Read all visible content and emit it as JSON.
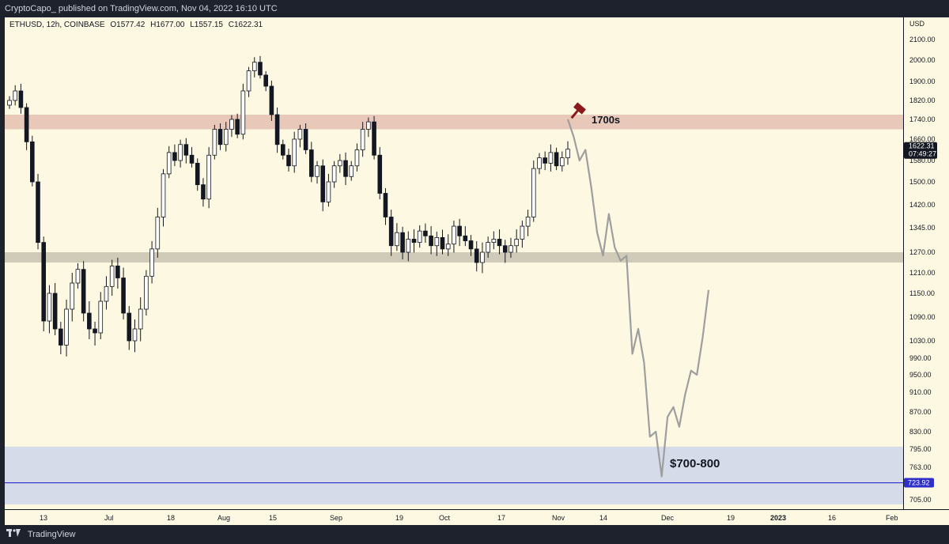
{
  "header": {
    "publish_text": "CryptoCapo_ published on TradingView.com, Nov 04, 2022 16:10 UTC"
  },
  "footer": {
    "brand": "TradingView"
  },
  "chart_data": {
    "type": "candlestick",
    "symbol_info": "ETHUSD, 12h, COINBASE",
    "ohlc": {
      "open": "O1577.42",
      "high": "H1677.00",
      "low": "L1557.15",
      "close": "C1622.31"
    },
    "currency": "USD",
    "y_ticks": [
      2100,
      2000,
      1900,
      1820,
      1740,
      1660,
      1580,
      1500,
      1420,
      1345,
      1270,
      1210,
      1150,
      1090,
      1030,
      990,
      950,
      910,
      870,
      830,
      795,
      763,
      723,
      705
    ],
    "y_tick_labels": [
      "2100.00",
      "2000.00",
      "1900.00",
      "1820.00",
      "1740.00",
      "1660.00",
      "1580.00",
      "1500.00",
      "1420.00",
      "1345.00",
      "1270.00",
      "1210.00",
      "1150.00",
      "1090.00",
      "1030.00",
      "990.00",
      "950.00",
      "910.00",
      "870.00",
      "830.00",
      "795.00",
      "763.00",
      "723.00",
      "705.00"
    ],
    "x_labels": [
      "13",
      "Jul",
      "18",
      "Aug",
      "15",
      "Sep",
      "19",
      "Oct",
      "17",
      "Nov",
      "14",
      "Dec",
      "19",
      "2023",
      "16",
      "Feb"
    ],
    "last_price": {
      "value": "1622.31",
      "countdown": "07:49:27"
    },
    "support_line": {
      "value": "723.92"
    },
    "zones": [
      {
        "name": "resistance",
        "from": 1700,
        "to": 1760,
        "color": "#e8c8b8"
      },
      {
        "name": "support",
        "from": 1240,
        "to": 1270,
        "color": "#d0cbb8"
      },
      {
        "name": "target",
        "from": 700,
        "to": 800,
        "color": "#d5dbe8"
      }
    ],
    "annotations": {
      "top_label": "1700s",
      "target_label": "$700-800"
    },
    "colors": {
      "up": "#ffffff",
      "down": "#131722",
      "projection": "#9e9e9e",
      "support_line": "#2f2fcc",
      "hammer": "#8b1a1a"
    },
    "projection": [
      1740,
      1670,
      1580,
      1620,
      1480,
      1330,
      1260,
      1390,
      1285,
      1245,
      1260,
      1000,
      1060,
      980,
      820,
      830,
      740,
      860,
      880,
      840,
      905,
      960,
      950,
      1040,
      1160
    ],
    "candles_close": [
      1820,
      1860,
      1790,
      1650,
      1500,
      1300,
      1080,
      1150,
      1060,
      1020,
      1110,
      1180,
      1220,
      1100,
      1060,
      1050,
      1130,
      1170,
      1230,
      1195,
      1100,
      1030,
      1060,
      1110,
      1200,
      1280,
      1380,
      1530,
      1610,
      1580,
      1640,
      1600,
      1570,
      1490,
      1440,
      1600,
      1700,
      1640,
      1700,
      1740,
      1680,
      1860,
      1950,
      1990,
      1930,
      1880,
      1760,
      1640,
      1600,
      1560,
      1660,
      1700,
      1620,
      1520,
      1560,
      1430,
      1500,
      1560,
      1580,
      1520,
      1560,
      1620,
      1700,
      1730,
      1600,
      1460,
      1380,
      1290,
      1330,
      1270,
      1310,
      1300,
      1335,
      1320,
      1290,
      1315,
      1280,
      1295,
      1350,
      1320,
      1305,
      1280,
      1240,
      1270,
      1300,
      1310,
      1290,
      1270,
      1290,
      1310,
      1350,
      1380,
      1550,
      1590,
      1570,
      1610,
      1560,
      1590,
      1622.31
    ]
  }
}
